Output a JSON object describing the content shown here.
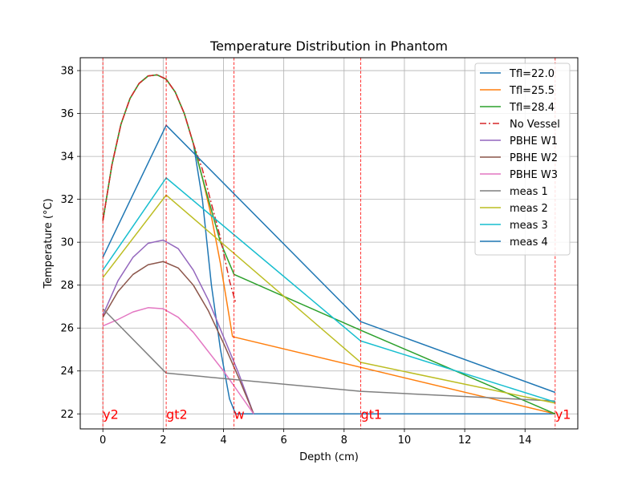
{
  "chart_data": {
    "type": "line",
    "title": "Temperature Distribution in Phantom",
    "xlabel": "Depth (cm)",
    "ylabel": "Temperature (°C)",
    "xlim": [
      -0.75,
      15.75
    ],
    "ylim": [
      21.3,
      38.6
    ],
    "xticks": [
      0,
      2,
      4,
      6,
      8,
      10,
      12,
      14
    ],
    "yticks": [
      22,
      24,
      26,
      28,
      30,
      32,
      34,
      36,
      38
    ],
    "grid": true,
    "legend_position": "top-right",
    "series": [
      {
        "name": "Tfl=22.0",
        "color": "#1f77b4",
        "style": "solid",
        "x": [
          0,
          0.3,
          0.6,
          0.9,
          1.2,
          1.5,
          1.8,
          2.1,
          2.4,
          2.7,
          3.0,
          3.3,
          3.6,
          3.9,
          4.2,
          4.4,
          15
        ],
        "y": [
          31.0,
          33.6,
          35.5,
          36.7,
          37.4,
          37.75,
          37.8,
          37.6,
          37.0,
          36.0,
          34.6,
          32.0,
          28.0,
          25.0,
          22.7,
          22.0,
          22.0
        ]
      },
      {
        "name": "Tfl=25.5",
        "color": "#ff7f0e",
        "style": "solid",
        "x": [
          0,
          0.3,
          0.6,
          0.9,
          1.2,
          1.5,
          1.8,
          2.1,
          2.4,
          2.7,
          3.0,
          3.3,
          3.6,
          3.9,
          4.3,
          15
        ],
        "y": [
          31.0,
          33.6,
          35.5,
          36.7,
          37.4,
          37.75,
          37.8,
          37.6,
          37.0,
          36.0,
          34.6,
          33.0,
          31.2,
          29.0,
          25.6,
          22.0
        ]
      },
      {
        "name": "Tfl=28.4",
        "color": "#2ca02c",
        "style": "solid",
        "x": [
          0,
          0.3,
          0.6,
          0.9,
          1.2,
          1.5,
          1.8,
          2.1,
          2.4,
          2.7,
          3.0,
          3.3,
          3.6,
          3.9,
          4.35,
          8.55,
          15
        ],
        "y": [
          31.0,
          33.6,
          35.5,
          36.7,
          37.4,
          37.75,
          37.8,
          37.6,
          37.0,
          36.0,
          34.6,
          33.0,
          31.5,
          30.0,
          28.5,
          25.9,
          22.0
        ]
      },
      {
        "name": "No Vessel",
        "color": "#d62728",
        "style": "dashdot",
        "x": [
          0,
          0.3,
          0.6,
          0.9,
          1.2,
          1.5,
          1.8,
          2.1,
          2.4,
          2.7,
          3.0,
          3.3,
          3.6,
          3.9,
          4.2,
          4.4
        ],
        "y": [
          31.0,
          33.6,
          35.5,
          36.7,
          37.4,
          37.75,
          37.8,
          37.6,
          37.0,
          36.0,
          34.6,
          33.4,
          31.8,
          30.2,
          28.2,
          27.2
        ]
      },
      {
        "name": "PBHE W1",
        "color": "#9467bd",
        "style": "solid",
        "x": [
          0,
          0.5,
          1.0,
          1.5,
          2.0,
          2.5,
          3.0,
          3.5,
          4.0,
          4.5,
          5.0
        ],
        "y": [
          26.6,
          28.2,
          29.3,
          29.95,
          30.1,
          29.7,
          28.7,
          27.3,
          25.6,
          23.9,
          22.0
        ]
      },
      {
        "name": "PBHE W2",
        "color": "#8c564b",
        "style": "solid",
        "x": [
          0,
          0.5,
          1.0,
          1.5,
          2.0,
          2.5,
          3.0,
          3.5,
          4.0,
          4.5,
          5.0
        ],
        "y": [
          26.5,
          27.7,
          28.5,
          28.95,
          29.1,
          28.8,
          28.0,
          26.8,
          25.3,
          23.7,
          22.0
        ]
      },
      {
        "name": "PBHE W3",
        "color": "#e377c2",
        "style": "solid",
        "x": [
          0,
          0.5,
          1.0,
          1.5,
          2.0,
          2.5,
          3.0,
          3.5,
          4.0,
          4.5,
          5.0
        ],
        "y": [
          26.1,
          26.4,
          26.75,
          26.95,
          26.9,
          26.5,
          25.8,
          24.9,
          24.0,
          23.0,
          22.0
        ]
      },
      {
        "name": "meas 1",
        "color": "#7f7f7f",
        "style": "solid",
        "x": [
          0,
          2.1,
          8.55,
          15
        ],
        "y": [
          26.9,
          23.9,
          23.05,
          22.6
        ]
      },
      {
        "name": "meas 2",
        "color": "#bcbd22",
        "style": "solid",
        "x": [
          0,
          2.1,
          8.55,
          15
        ],
        "y": [
          28.35,
          32.2,
          24.4,
          22.5
        ]
      },
      {
        "name": "meas 3",
        "color": "#17becf",
        "style": "solid",
        "x": [
          0,
          2.1,
          8.55,
          15
        ],
        "y": [
          28.7,
          33.0,
          25.4,
          22.55
        ]
      },
      {
        "name": "meas 4",
        "color": "#1f77b4",
        "style": "solid",
        "x": [
          0,
          2.1,
          8.55,
          15
        ],
        "y": [
          29.3,
          35.45,
          26.3,
          23.0
        ]
      }
    ],
    "vlines": [
      {
        "x": 0,
        "label": "y2"
      },
      {
        "x": 2.1,
        "label": "gt2"
      },
      {
        "x": 4.35,
        "label": "w"
      },
      {
        "x": 8.55,
        "label": "gt1"
      },
      {
        "x": 15,
        "label": "y1"
      }
    ],
    "vline_color": "#ff0000",
    "vline_label_y": 22.0
  }
}
